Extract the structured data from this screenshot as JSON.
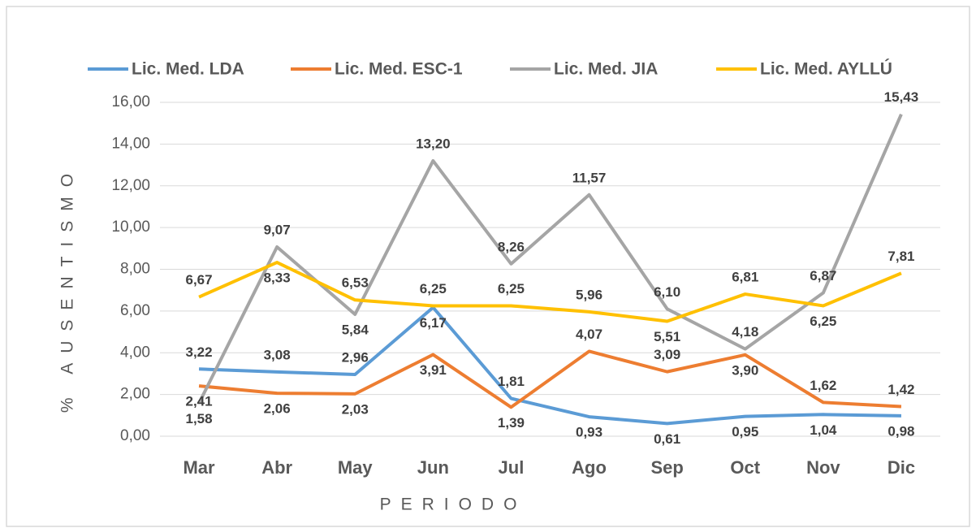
{
  "chart_data": {
    "type": "line",
    "categories": [
      "Mar",
      "Abr",
      "May",
      "Jun",
      "Jul",
      "Ago",
      "Sep",
      "Oct",
      "Nov",
      "Dic"
    ],
    "series": [
      {
        "name": "Lic. Med. LDA",
        "color": "#5b9bd5",
        "values": [
          3.22,
          3.08,
          2.96,
          6.17,
          1.81,
          0.93,
          0.61,
          0.95,
          1.04,
          0.98
        ],
        "value_labels": [
          "3,22",
          "3,08",
          "2,96",
          "6,17",
          "1,81",
          "0,93",
          "0,61",
          "0,95",
          "1,04",
          "0,98"
        ]
      },
      {
        "name": "Lic. Med. ESC-1",
        "color": "#ed7d31",
        "values": [
          2.41,
          2.06,
          2.03,
          3.91,
          1.39,
          4.07,
          3.09,
          3.9,
          1.62,
          1.42
        ],
        "value_labels": [
          "2,41",
          "2,06",
          "2,03",
          "3,91",
          "1,39",
          "4,07",
          "3,09",
          "3,90",
          "1,62",
          "1,42"
        ]
      },
      {
        "name": "Lic. Med. JIA",
        "color": "#a5a5a5",
        "values": [
          1.58,
          9.07,
          5.84,
          13.2,
          8.26,
          11.57,
          6.1,
          4.18,
          6.87,
          15.43
        ],
        "value_labels": [
          "1,58",
          "9,07",
          "5,84",
          "13,20",
          "8,26",
          "11,57",
          "6,10",
          "4,18",
          "6,87",
          "15,43"
        ]
      },
      {
        "name": "Lic. Med. AYLLÚ",
        "color": "#ffc000",
        "values": [
          6.67,
          8.33,
          6.53,
          6.25,
          6.25,
          5.96,
          5.51,
          6.81,
          6.25,
          7.81
        ],
        "value_labels": [
          "6,67",
          "8,33",
          "6,53",
          "6,25",
          "6,25",
          "5,96",
          "5,51",
          "6,81",
          "6,25",
          "7,81"
        ]
      }
    ],
    "ylim": [
      0,
      16
    ],
    "yticks": [
      {
        "value": 0,
        "label": "0,00"
      },
      {
        "value": 2,
        "label": "2,00"
      },
      {
        "value": 4,
        "label": "4,00"
      },
      {
        "value": 6,
        "label": "6,00"
      },
      {
        "value": 8,
        "label": "8,00"
      },
      {
        "value": 10,
        "label": "10,00"
      },
      {
        "value": 12,
        "label": "12,00"
      },
      {
        "value": 14,
        "label": "14,00"
      },
      {
        "value": 16,
        "label": "16,00"
      }
    ],
    "ylabel": "% AUSENTISMO",
    "xlabel": "PERIODO",
    "grid": true,
    "legend": "top"
  }
}
